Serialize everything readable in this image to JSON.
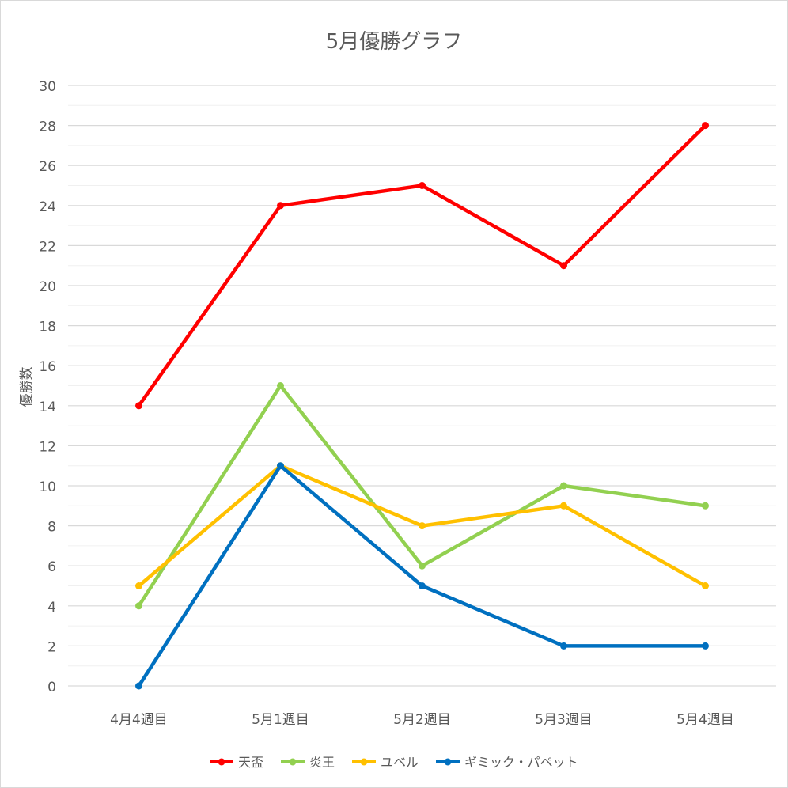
{
  "chart_data": {
    "type": "line",
    "title": "5月優勝グラフ",
    "xlabel": "",
    "ylabel": "優勝数",
    "categories": [
      "4月4週目",
      "5月1週目",
      "5月2週目",
      "5月3週目",
      "5月4週目"
    ],
    "ylim": [
      0,
      30
    ],
    "yticks": [
      0,
      2,
      4,
      6,
      8,
      10,
      12,
      14,
      16,
      18,
      20,
      22,
      24,
      26,
      28,
      30
    ],
    "grid": true,
    "legend_position": "bottom",
    "series": [
      {
        "name": "天盃",
        "color": "#ff0000",
        "values": [
          14,
          24,
          25,
          21,
          28
        ]
      },
      {
        "name": "炎王",
        "color": "#92d050",
        "values": [
          4,
          15,
          6,
          10,
          9
        ]
      },
      {
        "name": "ユベル",
        "color": "#ffc000",
        "values": [
          5,
          11,
          8,
          9,
          5
        ]
      },
      {
        "name": "ギミック・パペット",
        "color": "#0070c0",
        "values": [
          0,
          11,
          5,
          2,
          2
        ]
      }
    ]
  }
}
